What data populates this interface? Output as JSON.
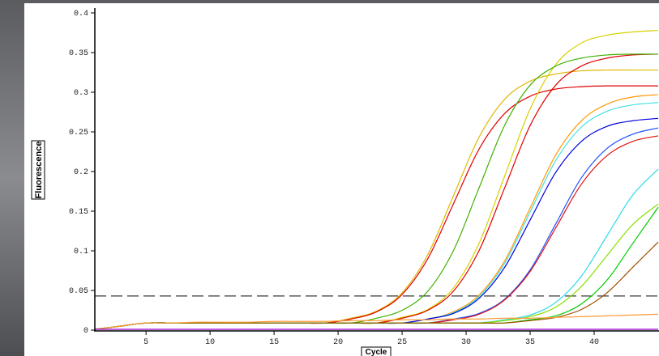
{
  "chart_data": {
    "type": "line",
    "x_label": "Cycle",
    "y_label": "Fluorescence",
    "xlim": [
      1,
      45
    ],
    "ylim": [
      0,
      0.4
    ],
    "xticks": [
      5,
      10,
      15,
      20,
      25,
      30,
      35,
      40
    ],
    "yticks": [
      0,
      0.05,
      0.1,
      0.15,
      0.2,
      0.25,
      0.3,
      0.35,
      0.4
    ],
    "threshold": 0.043,
    "x": [
      1,
      3,
      5,
      7,
      9,
      11,
      13,
      15,
      17,
      19,
      21,
      23,
      25,
      27,
      29,
      31,
      33,
      35,
      37,
      39,
      41,
      43,
      45
    ],
    "series": [
      {
        "color": "#e0b800",
        "values": [
          0.001,
          0.005,
          0.009,
          0.009,
          0.009,
          0.009,
          0.009,
          0.009,
          0.009,
          0.009,
          0.015,
          0.024,
          0.047,
          0.095,
          0.169,
          0.243,
          0.291,
          0.314,
          0.323,
          0.327,
          0.328,
          0.328,
          0.328
        ]
      },
      {
        "color": "#e00000",
        "values": [
          0.001,
          0.005,
          0.009,
          0.009,
          0.009,
          0.009,
          0.009,
          0.009,
          0.009,
          0.009,
          0.014,
          0.023,
          0.045,
          0.09,
          0.159,
          0.228,
          0.273,
          0.295,
          0.304,
          0.307,
          0.308,
          0.308,
          0.308
        ]
      },
      {
        "color": "#d8d000",
        "values": [
          0.001,
          0.005,
          0.009,
          0.009,
          0.009,
          0.009,
          0.009,
          0.009,
          0.009,
          0.009,
          0.009,
          0.009,
          0.016,
          0.026,
          0.053,
          0.109,
          0.194,
          0.279,
          0.335,
          0.362,
          0.372,
          0.376,
          0.378
        ]
      },
      {
        "color": "#e00000",
        "values": [
          0.001,
          0.005,
          0.009,
          0.009,
          0.009,
          0.009,
          0.009,
          0.009,
          0.009,
          0.009,
          0.009,
          0.009,
          0.015,
          0.025,
          0.049,
          0.1,
          0.179,
          0.258,
          0.309,
          0.333,
          0.343,
          0.347,
          0.348
        ]
      },
      {
        "color": "#40b000",
        "values": [
          0.001,
          0.005,
          0.009,
          0.009,
          0.009,
          0.009,
          0.009,
          0.009,
          0.009,
          0.009,
          0.009,
          0.015,
          0.025,
          0.049,
          0.1,
          0.179,
          0.258,
          0.309,
          0.333,
          0.343,
          0.347,
          0.348,
          0.348
        ]
      },
      {
        "color": "#ff9900",
        "values": [
          0.001,
          0.005,
          0.009,
          0.009,
          0.009,
          0.009,
          0.009,
          0.009,
          0.009,
          0.009,
          0.009,
          0.009,
          0.009,
          0.014,
          0.023,
          0.044,
          0.087,
          0.154,
          0.221,
          0.264,
          0.285,
          0.294,
          0.297
        ]
      },
      {
        "color": "#40e0e0",
        "values": [
          0.001,
          0.005,
          0.009,
          0.009,
          0.009,
          0.009,
          0.009,
          0.009,
          0.009,
          0.009,
          0.009,
          0.009,
          0.009,
          0.014,
          0.022,
          0.042,
          0.084,
          0.149,
          0.214,
          0.256,
          0.276,
          0.284,
          0.287
        ]
      },
      {
        "color": "#0000e0",
        "values": [
          0.001,
          0.005,
          0.009,
          0.009,
          0.009,
          0.009,
          0.009,
          0.009,
          0.009,
          0.009,
          0.009,
          0.009,
          0.009,
          0.014,
          0.021,
          0.04,
          0.079,
          0.139,
          0.199,
          0.238,
          0.257,
          0.264,
          0.267
        ]
      },
      {
        "color": "#2050ff",
        "values": [
          0.001,
          0.005,
          0.009,
          0.009,
          0.009,
          0.009,
          0.009,
          0.009,
          0.009,
          0.009,
          0.009,
          0.009,
          0.009,
          0.009,
          0.014,
          0.021,
          0.039,
          0.076,
          0.134,
          0.192,
          0.229,
          0.247,
          0.255
        ]
      },
      {
        "color": "#e01010",
        "values": [
          0.001,
          0.005,
          0.009,
          0.009,
          0.009,
          0.009,
          0.009,
          0.009,
          0.009,
          0.009,
          0.009,
          0.009,
          0.009,
          0.009,
          0.013,
          0.02,
          0.038,
          0.074,
          0.129,
          0.184,
          0.22,
          0.238,
          0.245
        ]
      },
      {
        "color": "#30d8e8",
        "values": [
          0.001,
          0.005,
          0.009,
          0.009,
          0.009,
          0.009,
          0.009,
          0.009,
          0.009,
          0.009,
          0.009,
          0.009,
          0.009,
          0.009,
          0.009,
          0.009,
          0.013,
          0.019,
          0.035,
          0.068,
          0.119,
          0.17,
          0.203
        ]
      },
      {
        "color": "#88e000",
        "values": [
          0.001,
          0.005,
          0.009,
          0.009,
          0.009,
          0.009,
          0.009,
          0.009,
          0.009,
          0.009,
          0.009,
          0.009,
          0.009,
          0.009,
          0.009,
          0.009,
          0.012,
          0.017,
          0.029,
          0.055,
          0.094,
          0.133,
          0.159
        ]
      },
      {
        "color": "#00cc00",
        "values": [
          0.001,
          0.005,
          0.009,
          0.009,
          0.009,
          0.009,
          0.009,
          0.009,
          0.009,
          0.009,
          0.009,
          0.009,
          0.009,
          0.009,
          0.009,
          0.009,
          0.009,
          0.013,
          0.018,
          0.033,
          0.063,
          0.109,
          0.155
        ]
      },
      {
        "color": "#a05000",
        "values": [
          0.001,
          0.005,
          0.009,
          0.009,
          0.009,
          0.009,
          0.009,
          0.009,
          0.009,
          0.009,
          0.009,
          0.009,
          0.009,
          0.009,
          0.009,
          0.009,
          0.009,
          0.012,
          0.016,
          0.026,
          0.047,
          0.079,
          0.111
        ]
      },
      {
        "color": "#ff9933",
        "values": [
          0.001,
          0.005,
          0.009,
          0.009,
          0.01,
          0.01,
          0.01,
          0.011,
          0.011,
          0.011,
          0.012,
          0.012,
          0.013,
          0.013,
          0.014,
          0.014,
          0.015,
          0.015,
          0.016,
          0.017,
          0.018,
          0.019,
          0.02
        ]
      },
      {
        "color": "#9900cc",
        "values": [
          0.001,
          0.001,
          0.001,
          0.001,
          0.001,
          0.001,
          0.001,
          0.001,
          0.001,
          0.001,
          0.001,
          0.001,
          0.001,
          0.001,
          0.001,
          0.001,
          0.001,
          0.001,
          0.001,
          0.001,
          0.001,
          0.001,
          0.001
        ]
      }
    ]
  }
}
